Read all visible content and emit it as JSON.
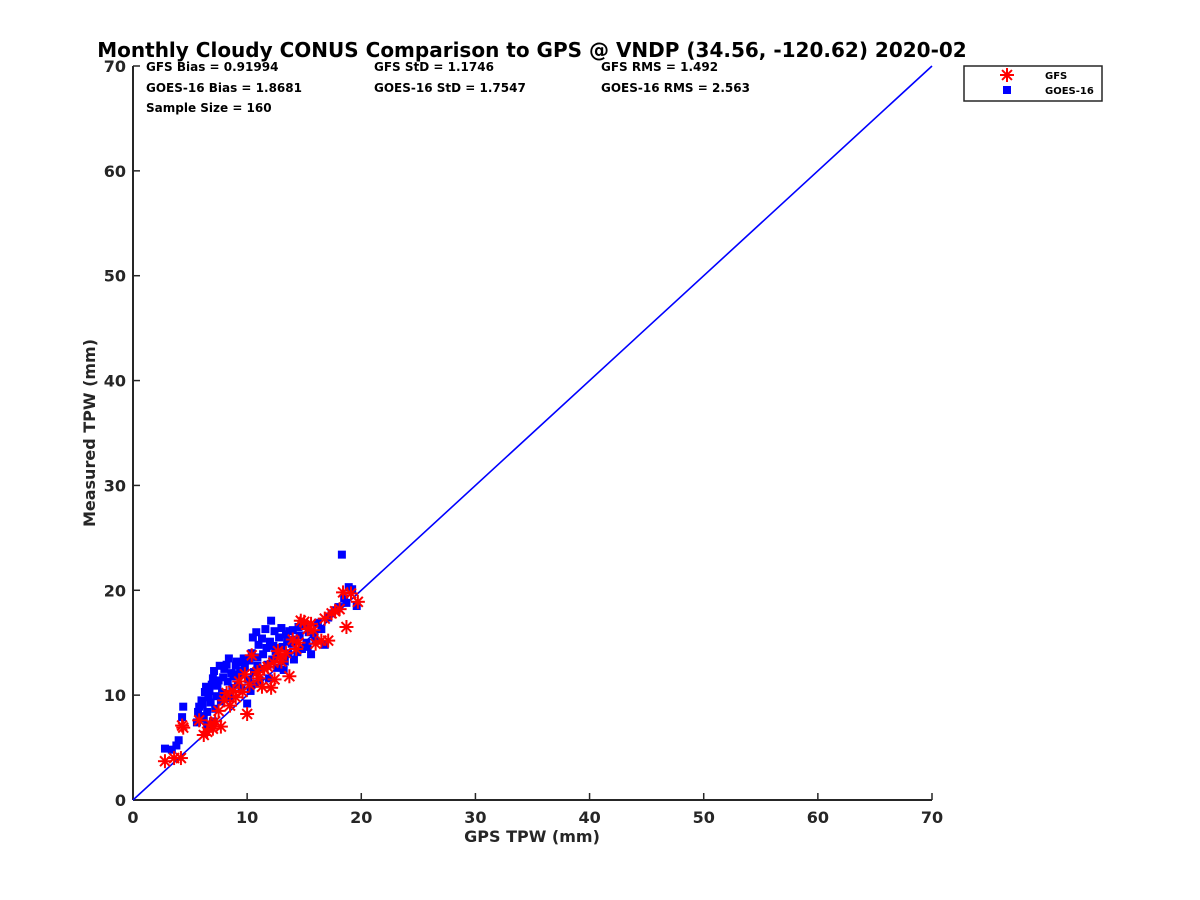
{
  "chart_data": {
    "type": "scatter",
    "title": "Monthly Cloudy CONUS Comparison to GPS @ VNDP (34.56, -120.62) 2020-02",
    "xlabel": "GPS TPW (mm)",
    "ylabel": "Measured TPW (mm)",
    "xlim": [
      0,
      70
    ],
    "ylim": [
      0,
      70
    ],
    "xticks": [
      0,
      10,
      20,
      30,
      40,
      50,
      60,
      70
    ],
    "yticks": [
      0,
      10,
      20,
      30,
      40,
      50,
      60,
      70
    ],
    "grid": false,
    "legend_position": "outside-top-right",
    "stats": {
      "gfs_bias": "GFS Bias = 0.91994",
      "gfs_std": "GFS StD = 1.1746",
      "gfs_rms": "GFS RMS = 1.492",
      "goes_bias": "GOES-16 Bias = 1.8681",
      "goes_std": "GOES-16 StD = 1.7547",
      "goes_rms": "GOES-16 RMS = 2.563",
      "sample_size": "Sample Size = 160"
    },
    "reference_line": {
      "x": [
        0,
        70
      ],
      "y": [
        0,
        70
      ],
      "color": "#0000ff"
    },
    "series": [
      {
        "name": "GFS",
        "marker": "asterisk",
        "color": "#ff0000",
        "points": [
          [
            2.8,
            3.7
          ],
          [
            3.6,
            4.0
          ],
          [
            4.2,
            4.0
          ],
          [
            4.3,
            7.1
          ],
          [
            4.4,
            6.9
          ],
          [
            5.8,
            7.6
          ],
          [
            6.2,
            6.2
          ],
          [
            6.5,
            6.5
          ],
          [
            7.0,
            6.8
          ],
          [
            7.2,
            7.5
          ],
          [
            7.7,
            7.0
          ],
          [
            7.5,
            8.5
          ],
          [
            8.0,
            9.5
          ],
          [
            8.2,
            10.2
          ],
          [
            8.5,
            9.0
          ],
          [
            9.0,
            9.8
          ],
          [
            9.6,
            10.3
          ],
          [
            10.0,
            8.2
          ],
          [
            10.2,
            11.0
          ],
          [
            10.4,
            13.8
          ],
          [
            10.9,
            12.2
          ],
          [
            11.3,
            10.8
          ],
          [
            11.5,
            12.5
          ],
          [
            11.8,
            12.7
          ],
          [
            12.1,
            10.7
          ],
          [
            12.4,
            11.5
          ],
          [
            12.7,
            14.2
          ],
          [
            13.0,
            13.2
          ],
          [
            13.7,
            11.8
          ],
          [
            14.0,
            15.3
          ],
          [
            14.3,
            14.4
          ],
          [
            14.7,
            17.1
          ],
          [
            15.0,
            17.0
          ],
          [
            15.3,
            16.3
          ],
          [
            15.8,
            16.2
          ],
          [
            16.0,
            14.9
          ],
          [
            16.5,
            15.2
          ],
          [
            16.8,
            17.3
          ],
          [
            17.1,
            15.2
          ],
          [
            17.4,
            17.8
          ],
          [
            17.7,
            18.0
          ],
          [
            18.1,
            18.2
          ],
          [
            18.4,
            19.8
          ],
          [
            18.7,
            16.5
          ],
          [
            19.1,
            19.7
          ],
          [
            19.7,
            18.9
          ],
          [
            8.8,
            10.4
          ],
          [
            9.3,
            11.3
          ],
          [
            12.9,
            13.6
          ],
          [
            14.5,
            15.0
          ],
          [
            15.6,
            16.8
          ],
          [
            6.8,
            7.2
          ],
          [
            11.0,
            11.6
          ],
          [
            13.4,
            14.0
          ],
          [
            9.8,
            12.0
          ],
          [
            12.3,
            13.1
          ]
        ]
      },
      {
        "name": "GOES-16",
        "marker": "square",
        "color": "#0000ff",
        "points": [
          [
            2.8,
            4.9
          ],
          [
            3.4,
            4.8
          ],
          [
            3.8,
            5.2
          ],
          [
            4.0,
            5.7
          ],
          [
            4.3,
            7.9
          ],
          [
            4.4,
            8.9
          ],
          [
            5.6,
            7.4
          ],
          [
            5.7,
            8.4
          ],
          [
            5.8,
            8.9
          ],
          [
            6.0,
            9.5
          ],
          [
            6.1,
            9.1
          ],
          [
            6.3,
            10.3
          ],
          [
            6.4,
            10.8
          ],
          [
            6.5,
            8.4
          ],
          [
            6.6,
            9.8
          ],
          [
            6.7,
            10.4
          ],
          [
            6.9,
            11.0
          ],
          [
            7.0,
            11.6
          ],
          [
            7.1,
            12.3
          ],
          [
            7.3,
            9.9
          ],
          [
            7.4,
            10.9
          ],
          [
            7.5,
            11.4
          ],
          [
            7.6,
            12.8
          ],
          [
            7.8,
            10.2
          ],
          [
            7.9,
            11.7
          ],
          [
            8.0,
            12.5
          ],
          [
            8.1,
            10.0
          ],
          [
            8.2,
            12.9
          ],
          [
            8.3,
            11.3
          ],
          [
            8.4,
            13.5
          ],
          [
            8.6,
            12.1
          ],
          [
            8.7,
            10.7
          ],
          [
            8.8,
            11.8
          ],
          [
            9.0,
            12.8
          ],
          [
            9.1,
            13.2
          ],
          [
            9.2,
            11.0
          ],
          [
            9.4,
            12.3
          ],
          [
            9.5,
            10.6
          ],
          [
            9.7,
            13.5
          ],
          [
            9.8,
            12.6
          ],
          [
            10.0,
            9.2
          ],
          [
            10.1,
            11.5
          ],
          [
            10.2,
            13.3
          ],
          [
            10.4,
            14.0
          ],
          [
            10.5,
            15.5
          ],
          [
            10.6,
            12.2
          ],
          [
            10.8,
            16.0
          ],
          [
            10.9,
            13.6
          ],
          [
            11.0,
            14.8
          ],
          [
            11.2,
            12.5
          ],
          [
            11.3,
            15.4
          ],
          [
            11.4,
            13.9
          ],
          [
            11.6,
            16.3
          ],
          [
            11.7,
            14.5
          ],
          [
            11.8,
            12.9
          ],
          [
            12.0,
            15.1
          ],
          [
            12.1,
            17.1
          ],
          [
            12.2,
            13.4
          ],
          [
            12.4,
            16.1
          ],
          [
            12.5,
            14.2
          ],
          [
            12.7,
            12.6
          ],
          [
            12.8,
            15.5
          ],
          [
            13.0,
            16.4
          ],
          [
            13.1,
            14.6
          ],
          [
            13.3,
            13.2
          ],
          [
            13.4,
            15.8
          ],
          [
            13.6,
            14.0
          ],
          [
            13.7,
            16.1
          ],
          [
            13.9,
            14.9
          ],
          [
            14.1,
            13.4
          ],
          [
            14.2,
            15.3
          ],
          [
            14.4,
            14.1
          ],
          [
            14.6,
            15.7
          ],
          [
            14.8,
            14.4
          ],
          [
            15.0,
            16.6
          ],
          [
            15.2,
            15.0
          ],
          [
            15.4,
            16.0
          ],
          [
            15.6,
            13.9
          ],
          [
            15.9,
            15.8
          ],
          [
            16.2,
            16.9
          ],
          [
            16.5,
            16.3
          ],
          [
            16.8,
            14.8
          ],
          [
            17.1,
            17.4
          ],
          [
            17.4,
            17.8
          ],
          [
            17.7,
            18.1
          ],
          [
            18.0,
            18.4
          ],
          [
            18.3,
            23.4
          ],
          [
            18.5,
            19.2
          ],
          [
            18.7,
            18.8
          ],
          [
            18.9,
            20.3
          ],
          [
            19.2,
            20.1
          ],
          [
            19.6,
            18.5
          ],
          [
            5.9,
            7.8
          ],
          [
            6.2,
            8.0
          ],
          [
            6.8,
            9.3
          ],
          [
            7.2,
            8.7
          ],
          [
            7.7,
            9.4
          ],
          [
            8.5,
            9.7
          ],
          [
            9.3,
            11.9
          ],
          [
            10.3,
            10.4
          ],
          [
            10.7,
            11.1
          ],
          [
            11.1,
            11.4
          ],
          [
            11.9,
            11.6
          ],
          [
            12.6,
            13.8
          ],
          [
            13.2,
            12.4
          ],
          [
            14.5,
            16.5
          ],
          [
            6.5,
            7.2
          ],
          [
            7.0,
            7.5
          ],
          [
            8.9,
            12.0
          ],
          [
            9.6,
            13.1
          ],
          [
            10.9,
            12.8
          ],
          [
            12.3,
            14.7
          ],
          [
            13.5,
            15.1
          ],
          [
            14.0,
            16.2
          ],
          [
            15.3,
            14.6
          ],
          [
            16.0,
            15.2
          ]
        ]
      }
    ]
  }
}
